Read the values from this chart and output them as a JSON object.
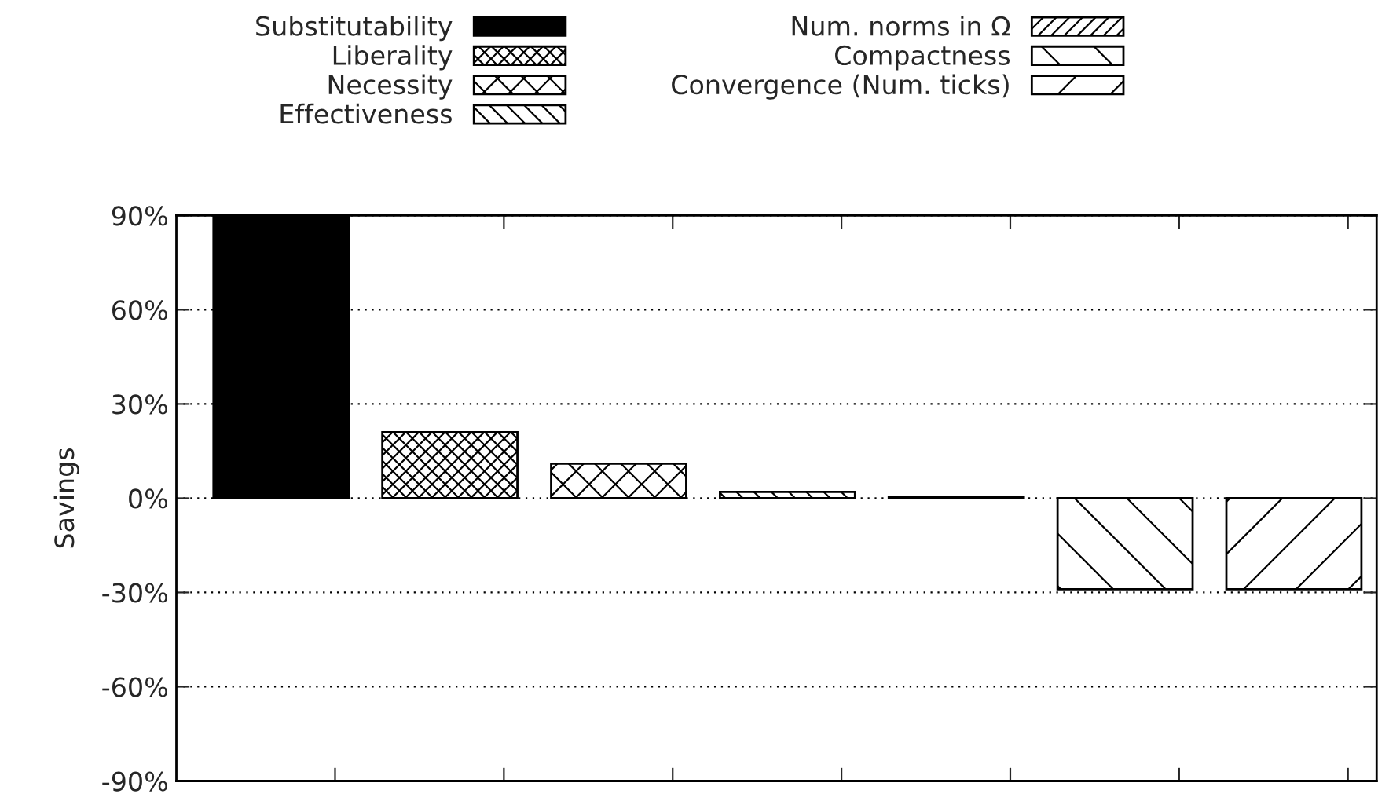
{
  "chart_data": {
    "type": "bar",
    "ylabel": "Savings",
    "categories": [
      null,
      null,
      null,
      null,
      null,
      null,
      null
    ],
    "series": [
      {
        "name": "Substitutability",
        "color": "#000000",
        "values": [
          90,
          null,
          null,
          null,
          null,
          null,
          null
        ]
      },
      {
        "name": "Liberality",
        "color": "#000000",
        "values": [
          null,
          21,
          null,
          null,
          null,
          null,
          null
        ]
      },
      {
        "name": "Necessity",
        "color": "#000000",
        "values": [
          null,
          null,
          11,
          null,
          null,
          null,
          null
        ]
      },
      {
        "name": "Effectiveness",
        "color": "#000000",
        "values": [
          null,
          null,
          null,
          2,
          null,
          null,
          null
        ]
      },
      {
        "name": "Num. norms in Ω",
        "color": "#000000",
        "values": [
          null,
          null,
          null,
          null,
          0.3,
          null,
          null
        ]
      },
      {
        "name": "Compactness",
        "color": "#000000",
        "values": [
          null,
          null,
          null,
          null,
          null,
          -29,
          null
        ]
      },
      {
        "name": "Convergence (Num. ticks)",
        "color": "#000000",
        "values": [
          null,
          null,
          null,
          null,
          null,
          null,
          -29
        ]
      }
    ],
    "ylim": [
      -90,
      90
    ],
    "yticks": [
      {
        "value": -90,
        "label": "-90%"
      },
      {
        "value": -60,
        "label": "-60%"
      },
      {
        "value": -30,
        "label": "-30%"
      },
      {
        "value": 0,
        "label": "0%"
      },
      {
        "value": 30,
        "label": "30%"
      },
      {
        "value": 60,
        "label": "60%"
      },
      {
        "value": 90,
        "label": "90%"
      }
    ],
    "grid": "y",
    "legend": "top",
    "tick_labels": "y"
  }
}
